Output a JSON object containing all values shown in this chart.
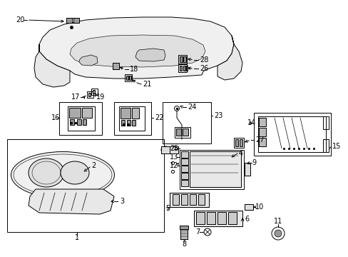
{
  "bg_color": "#ffffff",
  "line_color": "#000000",
  "fig_width": 4.89,
  "fig_height": 3.6,
  "dpi": 100,
  "lw": 0.7
}
